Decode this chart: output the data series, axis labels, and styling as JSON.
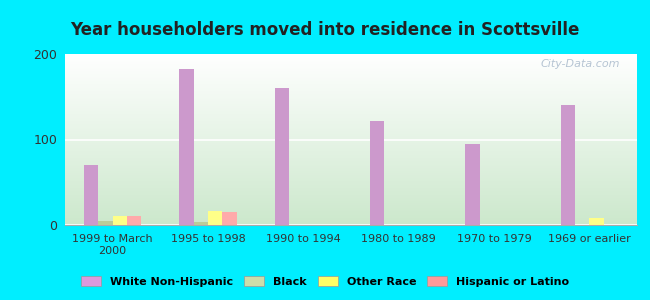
{
  "title": "Year householders moved into residence in Scottsville",
  "categories": [
    "1999 to March\n2000",
    "1995 to 1998",
    "1990 to 1994",
    "1980 to 1989",
    "1970 to 1979",
    "1969 or earlier"
  ],
  "series": {
    "White Non-Hispanic": [
      70,
      182,
      160,
      122,
      95,
      140
    ],
    "Black": [
      5,
      4,
      0,
      0,
      0,
      0
    ],
    "Other Race": [
      11,
      16,
      0,
      0,
      0,
      8
    ],
    "Hispanic or Latino": [
      10,
      15,
      0,
      0,
      0,
      0
    ]
  },
  "colors": {
    "White Non-Hispanic": "#cc99cc",
    "Black": "#bbcc99",
    "Other Race": "#ffff88",
    "Hispanic or Latino": "#ffaaaa"
  },
  "legend_colors": {
    "White Non-Hispanic": "#dd99dd",
    "Black": "#ccddaa",
    "Other Race": "#ffff66",
    "Hispanic or Latino": "#ff9999"
  },
  "ylim": [
    0,
    200
  ],
  "yticks": [
    0,
    100,
    200
  ],
  "background_color": "#00eeff",
  "plot_bg_top": "#ffffff",
  "plot_bg_bottom": "#cce8cc",
  "watermark": "City-Data.com",
  "bar_width": 0.15,
  "grid_color": "#dddddd",
  "title_color": "#222222",
  "tick_color": "#333333",
  "watermark_color": "#aabbcc"
}
